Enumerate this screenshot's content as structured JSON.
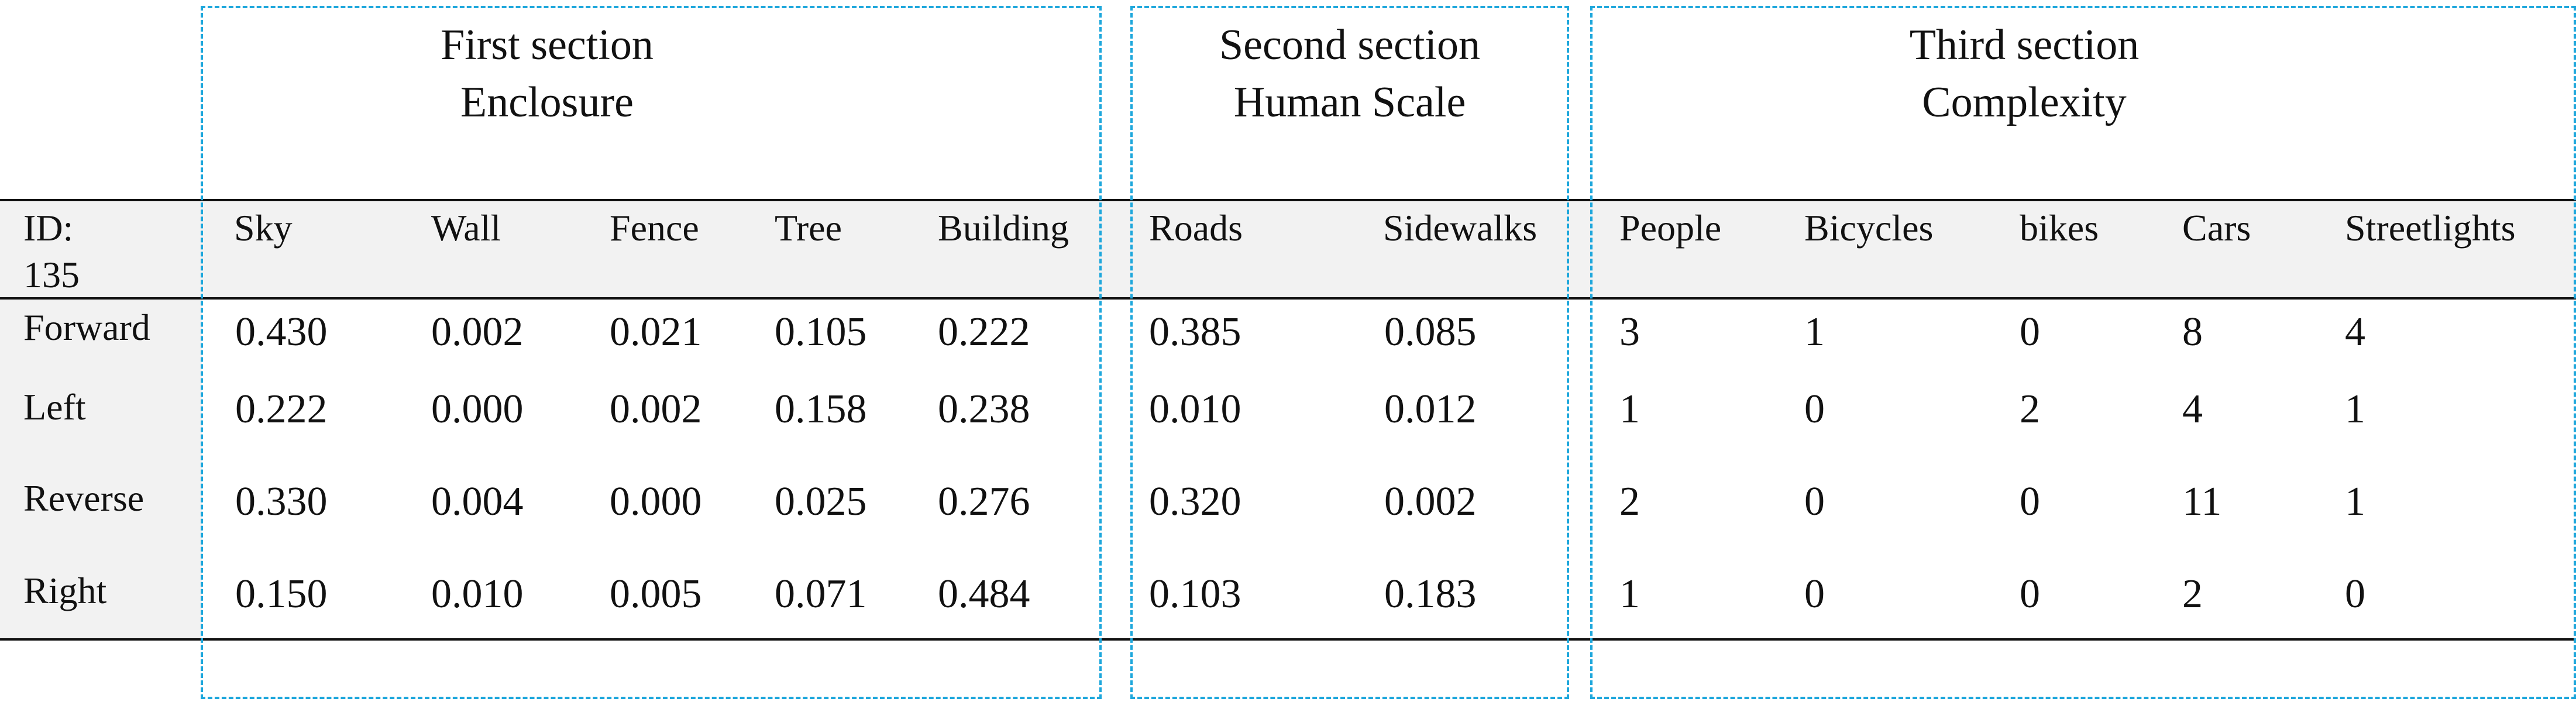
{
  "sections": [
    {
      "line1": "First section",
      "line2": "Enclosure"
    },
    {
      "line1": "Second section",
      "line2": "Human Scale"
    },
    {
      "line1": "Third section",
      "line2": "Complexity"
    }
  ],
  "table": {
    "id_label": "ID:",
    "id_value": "135",
    "columns": [
      "Sky",
      "Wall",
      "Fence",
      "Tree",
      "Building",
      "Roads",
      "Sidewalks",
      "People",
      "Bicycles",
      "bikes",
      "Cars",
      "Streetlights"
    ],
    "rows": [
      {
        "label": "Forward",
        "values": [
          "0.430",
          "0.002",
          "0.021",
          "0.105",
          "0.222",
          "0.385",
          "0.085",
          "3",
          "1",
          "0",
          "8",
          "4"
        ]
      },
      {
        "label": "Left",
        "values": [
          "0.222",
          "0.000",
          "0.002",
          "0.158",
          "0.238",
          "0.010",
          "0.012",
          "1",
          "0",
          "2",
          "4",
          "1"
        ]
      },
      {
        "label": "Reverse",
        "values": [
          "0.330",
          "0.004",
          "0.000",
          "0.025",
          "0.276",
          "0.320",
          "0.002",
          "2",
          "0",
          "0",
          "11",
          "1"
        ]
      },
      {
        "label": "Right",
        "values": [
          "0.150",
          "0.010",
          "0.005",
          "0.071",
          "0.484",
          "0.103",
          "0.183",
          "1",
          "0",
          "0",
          "2",
          "0"
        ]
      }
    ]
  },
  "colors": {
    "frame": "#1ea7dc",
    "header_band": "#f2f2f2",
    "rule": "#111111"
  }
}
